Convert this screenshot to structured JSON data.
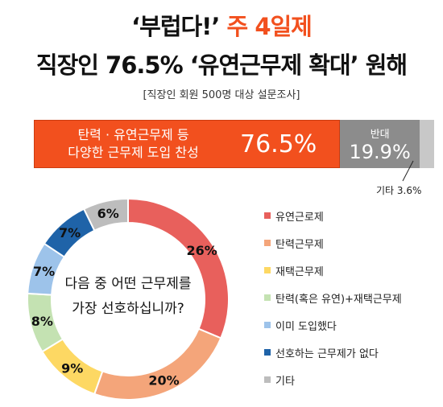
{
  "header": {
    "title_prefix": "‘부럽다!’",
    "title_highlight": "주 4일제",
    "title_line2": "직장인 76.5% ‘유연근무제 확대’ 원해",
    "subtitle": "[직장인 회원 500명 대상 설문조사]"
  },
  "colors": {
    "accent": "#f2501e",
    "oppose": "#8c8c8c",
    "other": "#c8c8c8"
  },
  "chart_data": [
    {
      "type": "bar",
      "orientation": "horizontal-stacked",
      "segments": [
        {
          "label_line1": "탄력 · 유연근무제 등",
          "label_line2": "다양한 근무제 도입 찬성",
          "value": 76.5,
          "value_label": "76.5%"
        },
        {
          "label": "반대",
          "value": 19.9,
          "value_label": "19.9%"
        },
        {
          "label": "기타 3.6%",
          "value": 3.6
        }
      ]
    },
    {
      "type": "pie",
      "style": "donut",
      "center_line1": "다음 중 어떤 근무제를",
      "center_line2": "가장 선호하십니까?",
      "slices": [
        {
          "label": "유연근로제",
          "value": 26,
          "value_label": "26%",
          "color": "#e8605c"
        },
        {
          "label": "탄력근무제",
          "value": 20,
          "value_label": "20%",
          "color": "#f4a57a"
        },
        {
          "label": "재택근무제",
          "value": 9,
          "value_label": "9%",
          "color": "#fdd863"
        },
        {
          "label": "탄력(혹은 유연)+재택근무제",
          "value": 8,
          "value_label": "8%",
          "color": "#c4e2b2"
        },
        {
          "label": "이미 도입했다",
          "value": 7,
          "value_label": "7%",
          "color": "#9dc3ea"
        },
        {
          "label": "선호하는 근무제가 없다",
          "value": 7,
          "value_label": "7%",
          "color": "#1f63a8"
        },
        {
          "label": "기타",
          "value": 6,
          "value_label": "6%",
          "color": "#bdbdbd"
        }
      ]
    }
  ]
}
